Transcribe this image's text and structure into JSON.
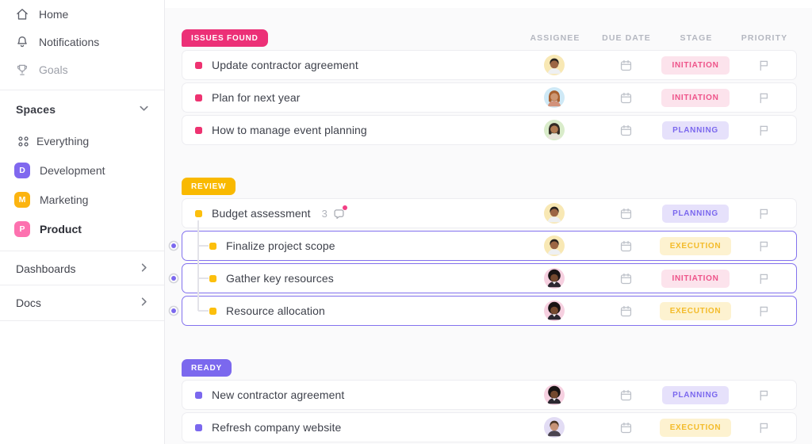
{
  "sidebar": {
    "nav_items": [
      {
        "label": "Home",
        "icon": "home-icon"
      },
      {
        "label": "Notifications",
        "icon": "bell-icon"
      },
      {
        "label": "Goals",
        "icon": "trophy-icon",
        "muted": true
      }
    ],
    "spaces": {
      "header": "Spaces",
      "items": [
        {
          "label": "Everything",
          "type": "grid"
        },
        {
          "label": "Development",
          "type": "letter",
          "letter": "D",
          "color": "#8068ef"
        },
        {
          "label": "Marketing",
          "type": "letter",
          "letter": "M",
          "color": "#fcb410"
        },
        {
          "label": "Product",
          "type": "letter",
          "letter": "P",
          "color": "#fd71af",
          "active": true
        }
      ]
    },
    "links": [
      {
        "label": "Dashboards"
      },
      {
        "label": "Docs"
      }
    ]
  },
  "board": {
    "columns": [
      "ASSIGNEE",
      "DUE DATE",
      "STAGE",
      "PRIORITY"
    ],
    "stage_styles": {
      "INITIATION": {
        "bg": "#fce3ec",
        "text": "#ee5389"
      },
      "PLANNING": {
        "bg": "#e6e1fb",
        "text": "#7b68ee"
      },
      "EXECUTION": {
        "bg": "#fdf2d0",
        "text": "#f3bb2a"
      }
    },
    "groups": [
      {
        "label": "ISSUES FOUND",
        "color": "#ec3077",
        "bullet": "#ee3371",
        "tasks": [
          {
            "name": "Update contractor agreement",
            "stage": "INITIATION",
            "avatar": "man-yellow"
          },
          {
            "name": "Plan for next year",
            "stage": "INITIATION",
            "avatar": "woman-blue"
          },
          {
            "name": "How to manage event planning",
            "stage": "PLANNING",
            "avatar": "woman-green"
          }
        ]
      },
      {
        "label": "REVIEW",
        "color": "#f9b900",
        "bullet": "#fcbf0d",
        "tasks": [
          {
            "name": "Budget assessment",
            "stage": "PLANNING",
            "avatar": "man-yellow",
            "subtask_count": "3"
          },
          {
            "name": "Finalize project scope",
            "stage": "EXECUTION",
            "avatar": "man-yellow",
            "sub": true,
            "selected": true
          },
          {
            "name": "Gather key resources",
            "stage": "INITIATION",
            "avatar": "afro-pink",
            "sub": true,
            "selected": true
          },
          {
            "name": "Resource allocation",
            "stage": "EXECUTION",
            "avatar": "afro-pink",
            "sub": true,
            "selected": true
          }
        ]
      },
      {
        "label": "READY",
        "color": "#7b68ee",
        "bullet": "#7b68ee",
        "tasks": [
          {
            "name": "New contractor agreement",
            "stage": "PLANNING",
            "avatar": "afro-pink"
          },
          {
            "name": "Refresh company website",
            "stage": "EXECUTION",
            "avatar": "man-purple"
          }
        ]
      }
    ],
    "avatars": {
      "man-yellow": {
        "style": "man",
        "bg": "#f8e8b4",
        "skin": "#9c6644",
        "hair": "#26201d",
        "top": "#eef0f2"
      },
      "woman-blue": {
        "style": "woman",
        "bg": "#cfe9f6",
        "skin": "#cd9672",
        "hair": "#a85f2e",
        "top": "#d2927b"
      },
      "woman-green": {
        "style": "woman",
        "bg": "#d9ecca",
        "skin": "#b07a52",
        "hair": "#332a24",
        "top": "#e8e4da"
      },
      "afro-pink": {
        "style": "afro",
        "bg": "#f6d0e0",
        "skin": "#74492f",
        "hair": "#191414",
        "top": "#2b2730"
      },
      "man-purple": {
        "style": "man",
        "bg": "#e2dcf4",
        "skin": "#c79376",
        "hair": "#4a3524",
        "top": "#4a4450"
      }
    },
    "selection_color": "#7b68ee",
    "notification_dot_color": "#f23f84"
  }
}
